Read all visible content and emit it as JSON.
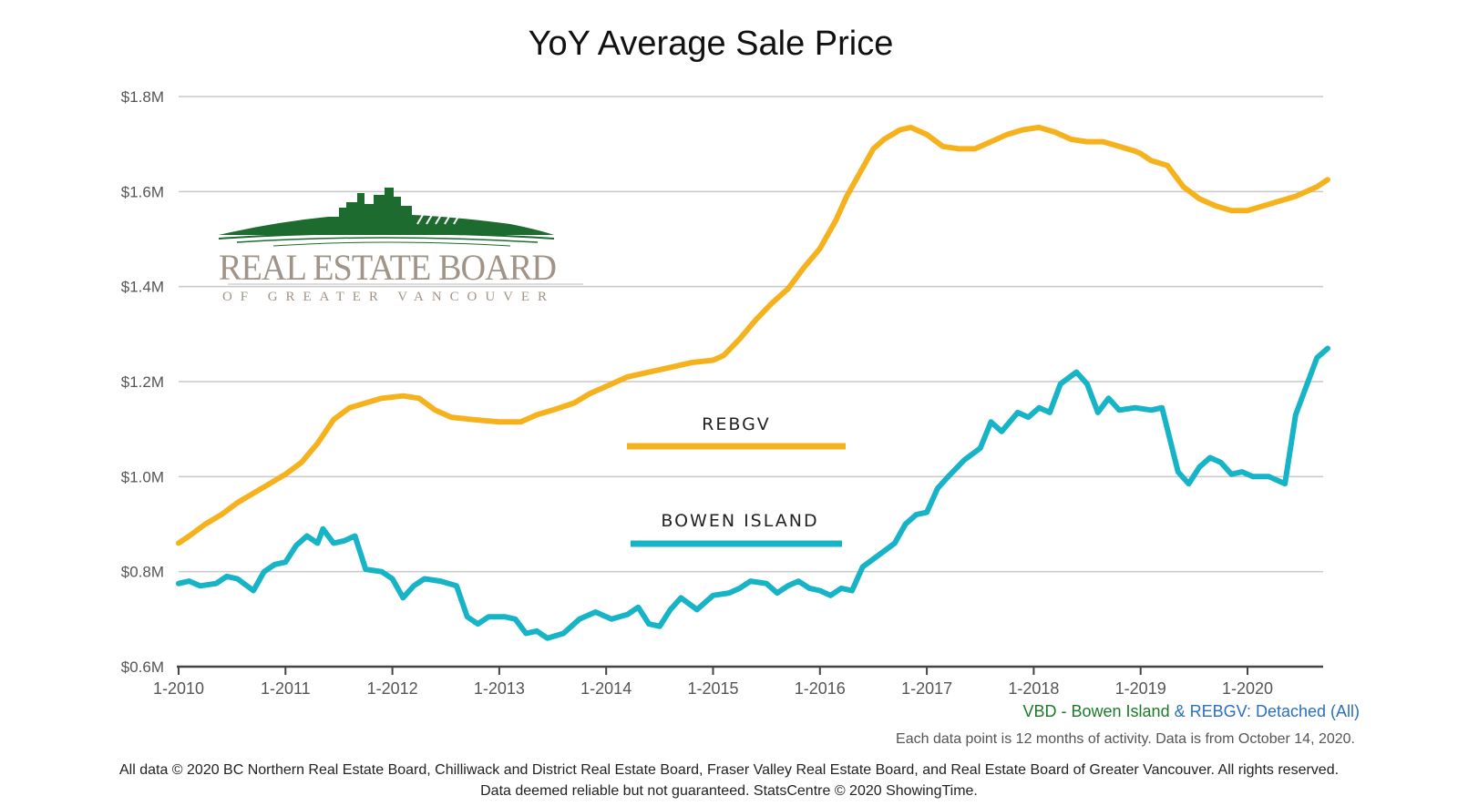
{
  "chart_data": {
    "type": "line",
    "title": "YoY Average Sale Price",
    "xlabel": "",
    "ylabel": "",
    "x_ticks": [
      "1-2010",
      "1-2011",
      "1-2012",
      "1-2013",
      "1-2014",
      "1-2015",
      "1-2016",
      "1-2017",
      "1-2018",
      "1-2019",
      "1-2020"
    ],
    "y_ticks": [
      "$0.6M",
      "$0.8M",
      "$1.0M",
      "$1.2M",
      "$1.4M",
      "$1.6M",
      "$1.8M"
    ],
    "ylim": [
      0.6,
      1.8
    ],
    "xlim": [
      2010.0,
      2020.75
    ],
    "grid": true,
    "legend_placement": "center",
    "series": [
      {
        "name": "REBGV",
        "color": "#f5b21c",
        "points": [
          [
            2010.0,
            0.86
          ],
          [
            2010.1,
            0.875
          ],
          [
            2010.25,
            0.9
          ],
          [
            2010.4,
            0.92
          ],
          [
            2010.55,
            0.945
          ],
          [
            2010.7,
            0.965
          ],
          [
            2010.85,
            0.985
          ],
          [
            2011.0,
            1.005
          ],
          [
            2011.15,
            1.03
          ],
          [
            2011.3,
            1.07
          ],
          [
            2011.45,
            1.12
          ],
          [
            2011.6,
            1.145
          ],
          [
            2011.75,
            1.155
          ],
          [
            2011.9,
            1.165
          ],
          [
            2012.1,
            1.17
          ],
          [
            2012.25,
            1.165
          ],
          [
            2012.4,
            1.14
          ],
          [
            2012.55,
            1.125
          ],
          [
            2012.75,
            1.12
          ],
          [
            2013.0,
            1.115
          ],
          [
            2013.2,
            1.115
          ],
          [
            2013.35,
            1.13
          ],
          [
            2013.5,
            1.14
          ],
          [
            2013.7,
            1.155
          ],
          [
            2013.85,
            1.175
          ],
          [
            2014.0,
            1.19
          ],
          [
            2014.2,
            1.21
          ],
          [
            2014.4,
            1.22
          ],
          [
            2014.6,
            1.23
          ],
          [
            2014.8,
            1.24
          ],
          [
            2015.0,
            1.245
          ],
          [
            2015.1,
            1.255
          ],
          [
            2015.25,
            1.29
          ],
          [
            2015.4,
            1.33
          ],
          [
            2015.55,
            1.365
          ],
          [
            2015.7,
            1.395
          ],
          [
            2015.85,
            1.44
          ],
          [
            2016.0,
            1.48
          ],
          [
            2016.15,
            1.54
          ],
          [
            2016.25,
            1.59
          ],
          [
            2016.4,
            1.65
          ],
          [
            2016.5,
            1.69
          ],
          [
            2016.6,
            1.71
          ],
          [
            2016.75,
            1.73
          ],
          [
            2016.85,
            1.735
          ],
          [
            2017.0,
            1.72
          ],
          [
            2017.15,
            1.695
          ],
          [
            2017.3,
            1.69
          ],
          [
            2017.45,
            1.69
          ],
          [
            2017.6,
            1.705
          ],
          [
            2017.75,
            1.72
          ],
          [
            2017.9,
            1.73
          ],
          [
            2018.05,
            1.735
          ],
          [
            2018.2,
            1.725
          ],
          [
            2018.35,
            1.71
          ],
          [
            2018.5,
            1.705
          ],
          [
            2018.65,
            1.705
          ],
          [
            2018.8,
            1.695
          ],
          [
            2018.95,
            1.685
          ],
          [
            2019.0,
            1.68
          ],
          [
            2019.1,
            1.665
          ],
          [
            2019.25,
            1.655
          ],
          [
            2019.4,
            1.61
          ],
          [
            2019.55,
            1.585
          ],
          [
            2019.7,
            1.57
          ],
          [
            2019.85,
            1.56
          ],
          [
            2020.0,
            1.56
          ],
          [
            2020.15,
            1.57
          ],
          [
            2020.3,
            1.58
          ],
          [
            2020.45,
            1.59
          ],
          [
            2020.55,
            1.6
          ],
          [
            2020.65,
            1.61
          ],
          [
            2020.75,
            1.625
          ]
        ]
      },
      {
        "name": "BOWEN ISLAND",
        "color": "#17b3c6",
        "points": [
          [
            2010.0,
            0.775
          ],
          [
            2010.1,
            0.78
          ],
          [
            2010.2,
            0.77
          ],
          [
            2010.35,
            0.775
          ],
          [
            2010.45,
            0.79
          ],
          [
            2010.55,
            0.785
          ],
          [
            2010.7,
            0.76
          ],
          [
            2010.8,
            0.8
          ],
          [
            2010.9,
            0.815
          ],
          [
            2011.0,
            0.82
          ],
          [
            2011.1,
            0.855
          ],
          [
            2011.2,
            0.875
          ],
          [
            2011.3,
            0.86
          ],
          [
            2011.35,
            0.89
          ],
          [
            2011.45,
            0.86
          ],
          [
            2011.55,
            0.865
          ],
          [
            2011.65,
            0.875
          ],
          [
            2011.75,
            0.805
          ],
          [
            2011.9,
            0.8
          ],
          [
            2012.0,
            0.785
          ],
          [
            2012.1,
            0.745
          ],
          [
            2012.2,
            0.77
          ],
          [
            2012.3,
            0.785
          ],
          [
            2012.45,
            0.78
          ],
          [
            2012.6,
            0.77
          ],
          [
            2012.7,
            0.705
          ],
          [
            2012.8,
            0.69
          ],
          [
            2012.9,
            0.705
          ],
          [
            2013.05,
            0.705
          ],
          [
            2013.15,
            0.7
          ],
          [
            2013.25,
            0.67
          ],
          [
            2013.35,
            0.675
          ],
          [
            2013.45,
            0.66
          ],
          [
            2013.6,
            0.67
          ],
          [
            2013.75,
            0.7
          ],
          [
            2013.9,
            0.715
          ],
          [
            2014.05,
            0.7
          ],
          [
            2014.2,
            0.71
          ],
          [
            2014.3,
            0.725
          ],
          [
            2014.4,
            0.69
          ],
          [
            2014.5,
            0.685
          ],
          [
            2014.6,
            0.72
          ],
          [
            2014.7,
            0.745
          ],
          [
            2014.85,
            0.72
          ],
          [
            2015.0,
            0.75
          ],
          [
            2015.15,
            0.755
          ],
          [
            2015.25,
            0.765
          ],
          [
            2015.35,
            0.78
          ],
          [
            2015.5,
            0.775
          ],
          [
            2015.6,
            0.755
          ],
          [
            2015.7,
            0.77
          ],
          [
            2015.8,
            0.78
          ],
          [
            2015.9,
            0.765
          ],
          [
            2016.0,
            0.76
          ],
          [
            2016.1,
            0.75
          ],
          [
            2016.2,
            0.765
          ],
          [
            2016.3,
            0.76
          ],
          [
            2016.4,
            0.81
          ],
          [
            2016.55,
            0.835
          ],
          [
            2016.7,
            0.86
          ],
          [
            2016.8,
            0.9
          ],
          [
            2016.9,
            0.92
          ],
          [
            2017.0,
            0.925
          ],
          [
            2017.1,
            0.975
          ],
          [
            2017.2,
            1.0
          ],
          [
            2017.35,
            1.035
          ],
          [
            2017.5,
            1.06
          ],
          [
            2017.6,
            1.115
          ],
          [
            2017.7,
            1.095
          ],
          [
            2017.85,
            1.135
          ],
          [
            2017.95,
            1.125
          ],
          [
            2018.05,
            1.145
          ],
          [
            2018.15,
            1.135
          ],
          [
            2018.25,
            1.195
          ],
          [
            2018.4,
            1.22
          ],
          [
            2018.5,
            1.195
          ],
          [
            2018.6,
            1.135
          ],
          [
            2018.7,
            1.165
          ],
          [
            2018.8,
            1.14
          ],
          [
            2018.95,
            1.145
          ],
          [
            2019.1,
            1.14
          ],
          [
            2019.2,
            1.145
          ],
          [
            2019.35,
            1.01
          ],
          [
            2019.45,
            0.985
          ],
          [
            2019.55,
            1.02
          ],
          [
            2019.65,
            1.04
          ],
          [
            2019.75,
            1.03
          ],
          [
            2019.85,
            1.005
          ],
          [
            2019.95,
            1.01
          ],
          [
            2020.05,
            1.0
          ],
          [
            2020.2,
            1.0
          ],
          [
            2020.35,
            0.985
          ],
          [
            2020.45,
            1.13
          ],
          [
            2020.55,
            1.19
          ],
          [
            2020.65,
            1.25
          ],
          [
            2020.75,
            1.27
          ]
        ]
      }
    ]
  },
  "source_label_green": "VBD - Bowen Island",
  "source_label_amp": " & ",
  "source_label_blue": "REBGV: Detached (All)",
  "note": "Each data point is 12 months of activity. Data is from October 14, 2020.",
  "footer_line1": "All data © 2020 BC Northern Real Estate Board, Chilliwack and District Real Estate Board, Fraser Valley Real Estate Board, and Real Estate Board of Greater Vancouver. All rights reserved.",
  "footer_line2": "Data deemed reliable but not guaranteed. StatsCentre © 2020 ShowingTime.",
  "logo": {
    "main": "REAL ESTATE BOARD",
    "sub": "OF GREATER VANCOUVER",
    "color": "#1d6b2e"
  }
}
